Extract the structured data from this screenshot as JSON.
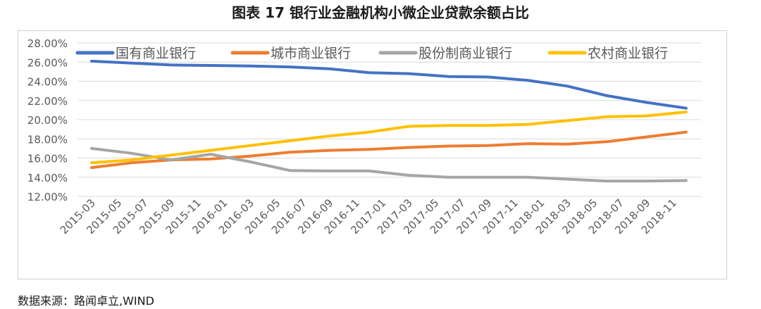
{
  "title": "图表 17 银行业金融机构小微企业贷款余额占比",
  "source": "数据来源：路闻卓立,WIND",
  "chart_data": {
    "type": "line",
    "title": "图表 17 银行业金融机构小微企业贷款余额占比",
    "xlabel": "",
    "ylabel": "",
    "ylim": [
      12,
      28
    ],
    "y_tick_labels": [
      "12.00%",
      "14.00%",
      "16.00%",
      "18.00%",
      "20.00%",
      "22.00%",
      "24.00%",
      "26.00%",
      "28.00%"
    ],
    "y_ticks": [
      12,
      14,
      16,
      18,
      20,
      22,
      24,
      26,
      28
    ],
    "x_tick_labels": [
      "2015-03",
      "2015-05",
      "2015-07",
      "2015-09",
      "2015-11",
      "2016-01",
      "2016-03",
      "2016-05",
      "2016-07",
      "2016-09",
      "2016-11",
      "2017-01",
      "2017-03",
      "2017-05",
      "2017-07",
      "2017-09",
      "2017-11",
      "2018-01",
      "2018-03",
      "2018-05",
      "2018-07",
      "2018-09",
      "2018-11"
    ],
    "grid": true,
    "legend_position": "top",
    "x": [
      "2015-03",
      "2015-06",
      "2015-09",
      "2015-12",
      "2016-03",
      "2016-06",
      "2016-09",
      "2016-12",
      "2017-03",
      "2017-06",
      "2017-09",
      "2017-12",
      "2018-03",
      "2018-06",
      "2018-09",
      "2018-12"
    ],
    "series": [
      {
        "name": "国有商业银行",
        "color": "#4472C4",
        "values": [
          26.1,
          25.9,
          25.7,
          25.65,
          25.6,
          25.5,
          25.3,
          24.9,
          24.8,
          24.5,
          24.45,
          24.1,
          23.5,
          22.5,
          21.8,
          21.2
        ]
      },
      {
        "name": "城市商业银行",
        "color": "#ED7D31",
        "values": [
          15.0,
          15.5,
          15.8,
          15.9,
          16.2,
          16.6,
          16.8,
          16.9,
          17.1,
          17.25,
          17.3,
          17.5,
          17.45,
          17.7,
          18.2,
          18.7
        ]
      },
      {
        "name": "股份制商业银行",
        "color": "#A5A5A5",
        "values": [
          17.0,
          16.5,
          15.8,
          16.4,
          15.6,
          14.7,
          14.65,
          14.65,
          14.2,
          14.0,
          14.0,
          14.0,
          13.8,
          13.6,
          13.6,
          13.65
        ]
      },
      {
        "name": "农村商业银行",
        "color": "#FFC000",
        "values": [
          15.5,
          15.8,
          16.3,
          16.8,
          17.3,
          17.8,
          18.3,
          18.7,
          19.3,
          19.4,
          19.4,
          19.5,
          19.9,
          20.3,
          20.4,
          20.8
        ]
      }
    ]
  }
}
